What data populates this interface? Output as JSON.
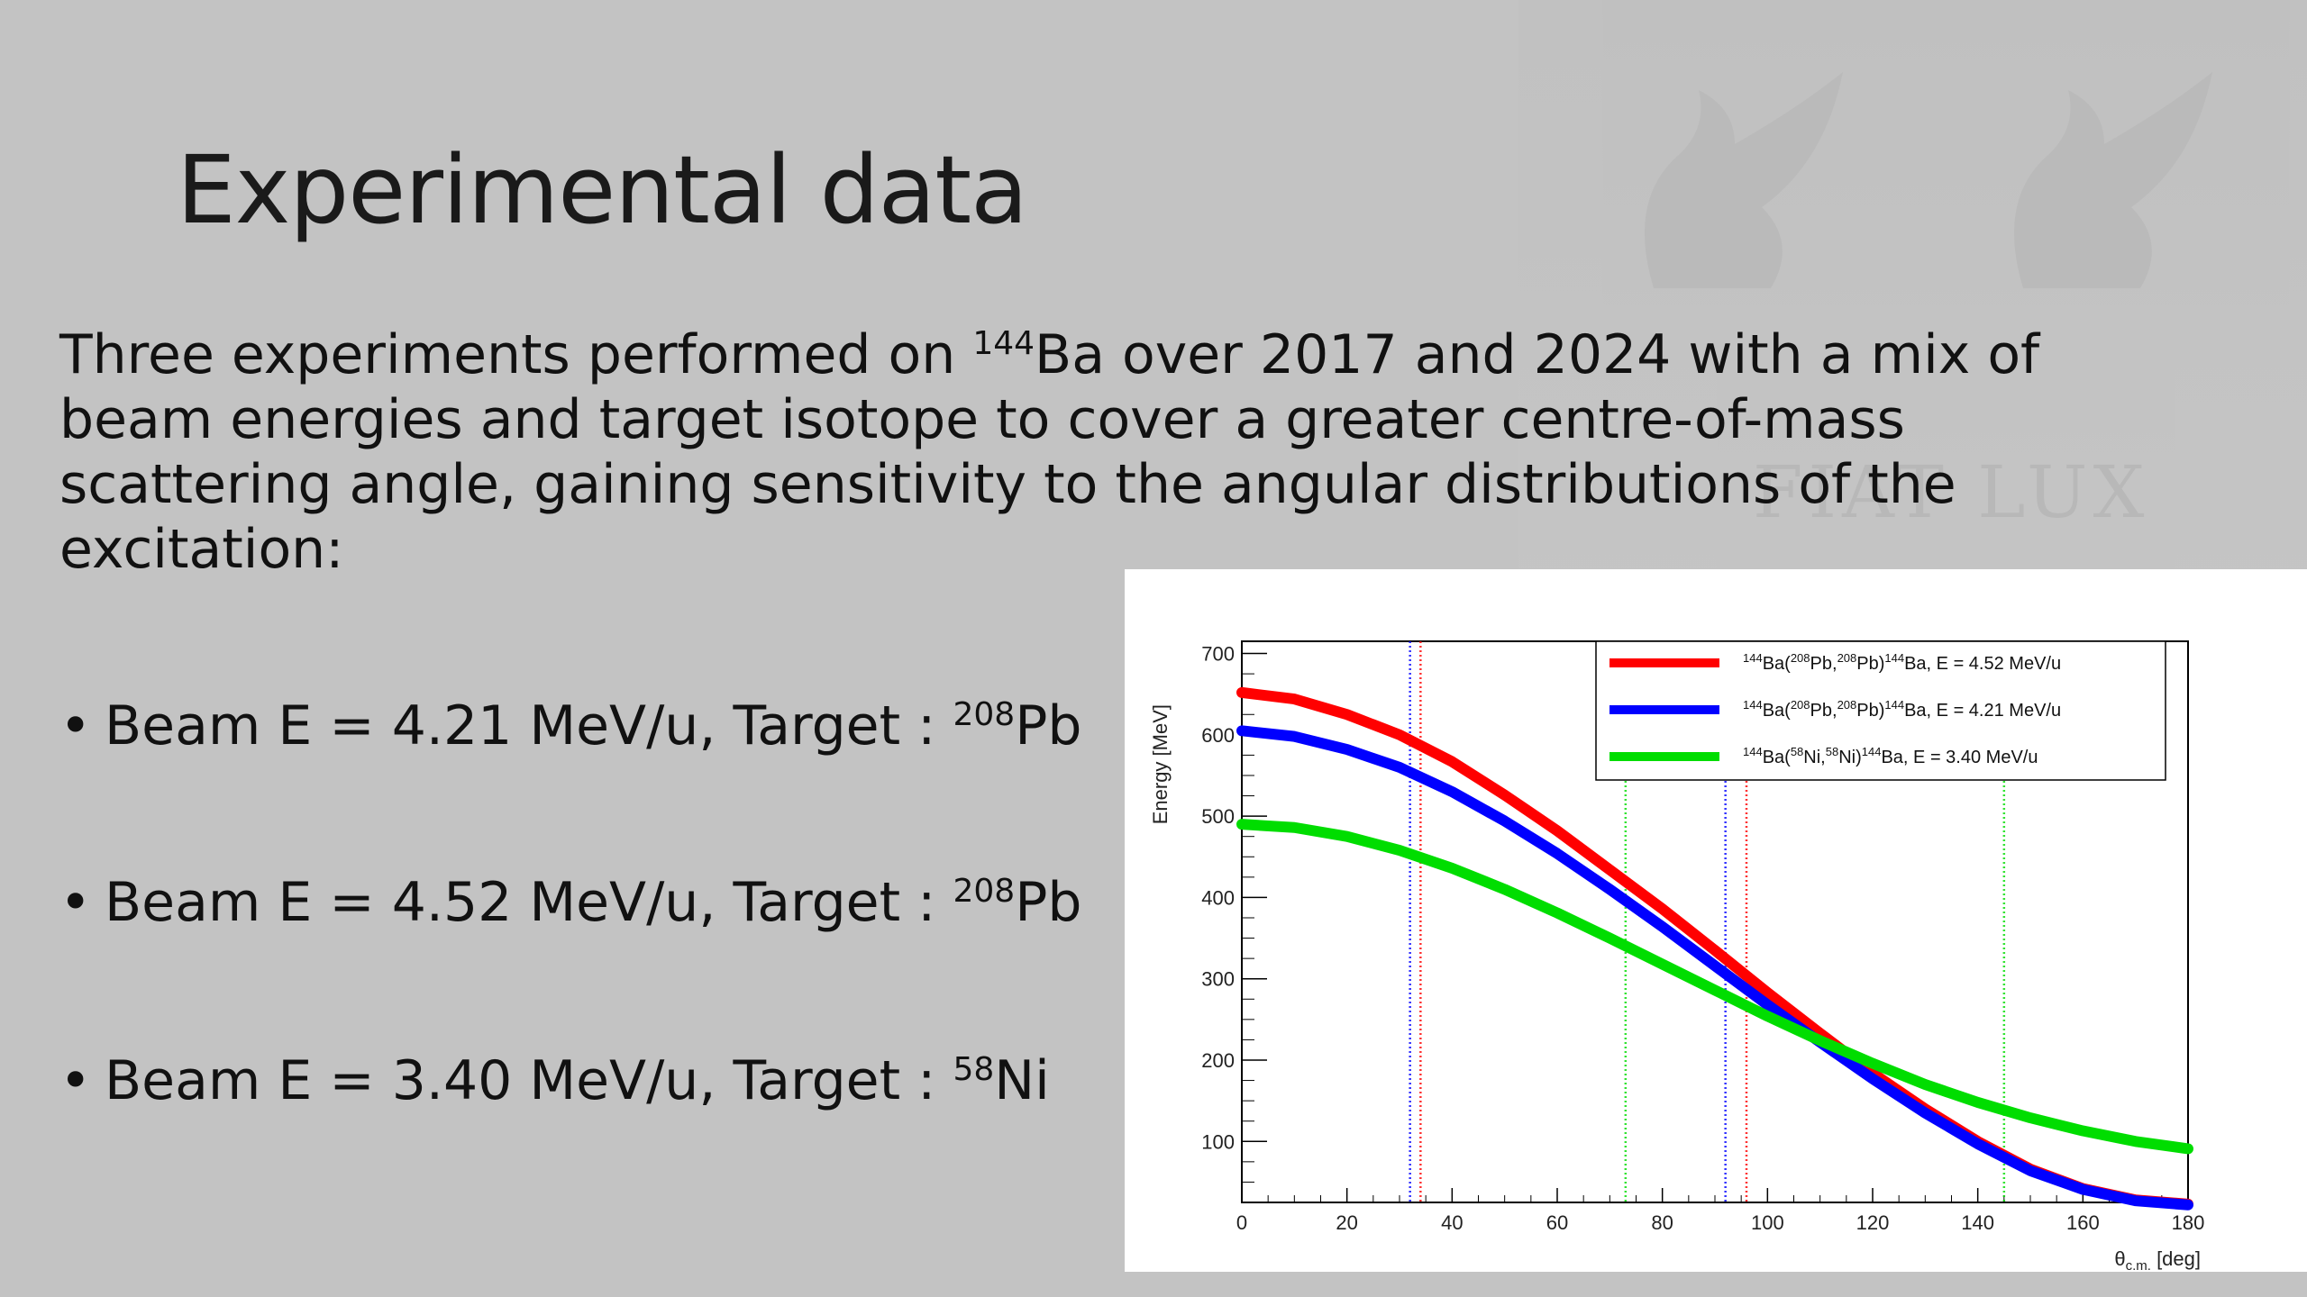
{
  "slide": {
    "title": "Experimental data",
    "intro": {
      "p1": "Three experiments performed on ",
      "sup": "144",
      "p2": "Ba over 2017 and 2024 with a mix of beam energies and target isotope to cover a greater centre-of-mass scattering angle, gaining sensitivity to the angular distributions of the excitation:"
    },
    "bullets": [
      {
        "marker": "•",
        "text": "Beam E = 4.21 MeV/u, Target : ",
        "sup": "208",
        "element": "Pb"
      },
      {
        "marker": "•",
        "text": "Beam E = 4.52 MeV/u, Target : ",
        "sup": "208",
        "element": "Pb"
      },
      {
        "marker": "•",
        "text": "Beam E = 3.40 MeV/u, Target : ",
        "sup": "58",
        "element": "Ni"
      }
    ],
    "watermark_motto": "FIAT LUX"
  },
  "chart_data": {
    "type": "line",
    "ylabel": "Energy [MeV]",
    "xlabel_main": "θ",
    "xlabel_sub": "c.m.",
    "xlabel_unit": " [deg]",
    "xlim": [
      0,
      180
    ],
    "ylim": [
      25,
      715
    ],
    "x_ticks": [
      0,
      20,
      40,
      60,
      80,
      100,
      120,
      140,
      160,
      180
    ],
    "y_ticks": [
      100,
      200,
      300,
      400,
      500,
      600,
      700
    ],
    "legend_position": "top-right",
    "series": [
      {
        "legend": {
          "pre": "144",
          "a": "Ba(",
          "b": "208",
          "c": "Pb,",
          "d": "208",
          "e": "Pb)",
          "f": "144",
          "g": "Ba, E = 4.52 MeV/u"
        },
        "color": "#ff0000",
        "x": [
          0,
          10,
          20,
          30,
          40,
          50,
          60,
          70,
          80,
          90,
          100,
          110,
          120,
          130,
          140,
          150,
          160,
          170,
          180
        ],
        "y": [
          652,
          644,
          625,
          600,
          567,
          526,
          482,
          434,
          386,
          335,
          283,
          233,
          184,
          140,
          100,
          66,
          42,
          28,
          23
        ],
        "lines": [
          34,
          96
        ]
      },
      {
        "legend": {
          "pre": "144",
          "a": "Ba(",
          "b": "208",
          "c": "Pb,",
          "d": "208",
          "e": "Pb)",
          "f": "144",
          "g": "Ba, E = 4.21 MeV/u"
        },
        "color": "#0000ff",
        "x": [
          0,
          10,
          20,
          30,
          40,
          50,
          60,
          70,
          80,
          90,
          100,
          110,
          120,
          130,
          140,
          150,
          160,
          170,
          180
        ],
        "y": [
          605,
          598,
          582,
          560,
          530,
          494,
          454,
          410,
          364,
          316,
          268,
          222,
          177,
          135,
          97,
          64,
          41,
          27,
          22
        ],
        "lines": [
          32,
          92
        ]
      },
      {
        "legend": {
          "pre": "144",
          "a": "Ba(",
          "b": "58",
          "c": "Ni,",
          "d": "58",
          "e": "Ni)",
          "f": "144",
          "g": "Ba, E = 3.40 MeV/u"
        },
        "color": "#00dd00",
        "x": [
          0,
          10,
          20,
          30,
          40,
          50,
          60,
          70,
          80,
          90,
          100,
          110,
          120,
          130,
          140,
          150,
          160,
          170,
          180
        ],
        "y": [
          490,
          486,
          475,
          458,
          436,
          410,
          381,
          350,
          318,
          286,
          254,
          224,
          196,
          170,
          148,
          129,
          113,
          100,
          91
        ],
        "lines": [
          73,
          145
        ]
      }
    ]
  }
}
